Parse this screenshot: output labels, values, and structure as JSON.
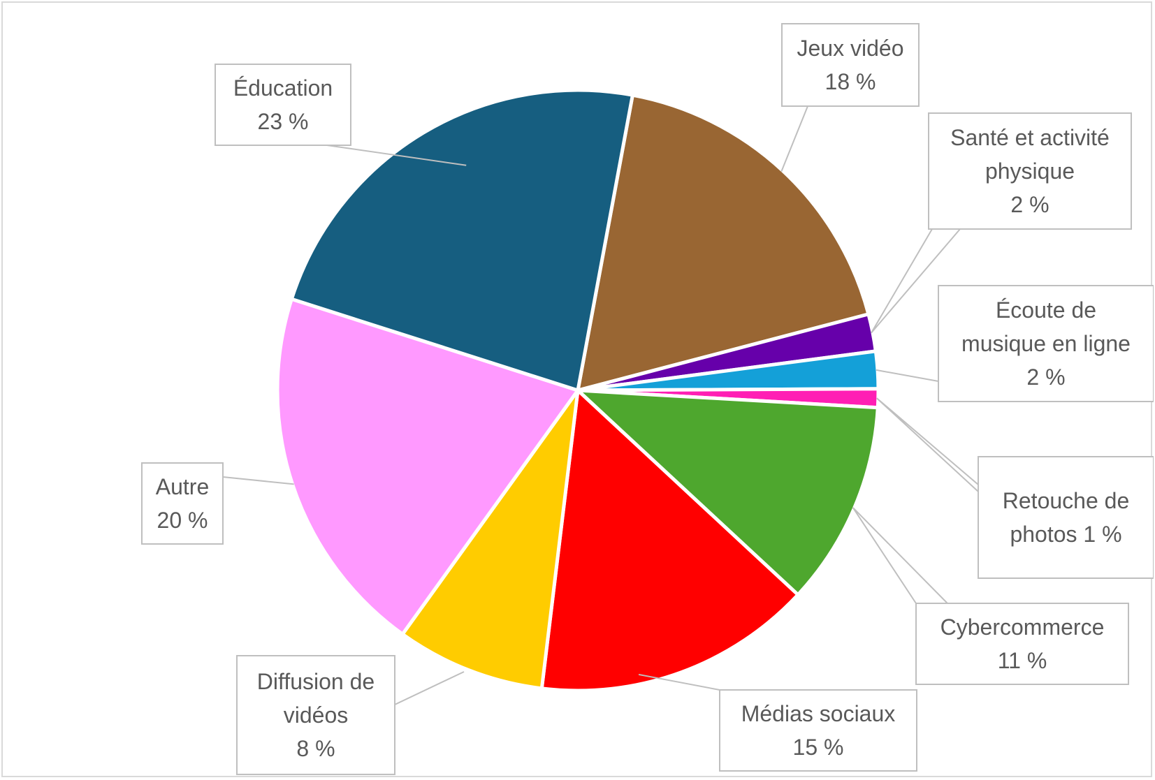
{
  "chart_data": {
    "type": "pie",
    "title": "",
    "slices": [
      {
        "label": "Jeux vidéo",
        "value": 18,
        "value_label": "18 %",
        "color": "#996633"
      },
      {
        "label": "Santé et activité physique",
        "value": 2,
        "value_label": "2 %",
        "color": "#6600aa"
      },
      {
        "label": "Écoute de musique en ligne",
        "value": 2,
        "value_label": "2 %",
        "color": "#14a0d8"
      },
      {
        "label": "Retouche de photos",
        "value": 1,
        "value_label": "1 %",
        "color": "#ff1fb4"
      },
      {
        "label": "Cybercommerce",
        "value": 11,
        "value_label": "11 %",
        "color": "#4ea72e"
      },
      {
        "label": "Médias sociaux",
        "value": 15,
        "value_label": "15 %",
        "color": "#ff0000"
      },
      {
        "label": "Diffusion de vidéos",
        "value": 8,
        "value_label": "8 %",
        "color": "#ffcc00"
      },
      {
        "label": "Autre",
        "value": 20,
        "value_label": "20 %",
        "color": "#ff99ff"
      },
      {
        "label": "Éducation",
        "value": 23,
        "value_label": "23 %",
        "color": "#165e80"
      }
    ],
    "data_labels": [
      {
        "lines": [
          "Jeux vidéo",
          "18 %"
        ]
      },
      {
        "lines": [
          "Santé et activité",
          "physique",
          "2 %"
        ]
      },
      {
        "lines": [
          "Écoute de",
          "musique en ligne",
          "2 %"
        ]
      },
      {
        "lines": [
          "Retouche de",
          "photos 1 %"
        ]
      },
      {
        "lines": [
          "Cybercommerce",
          "11 %"
        ]
      },
      {
        "lines": [
          "Médias sociaux",
          "15 %"
        ]
      },
      {
        "lines": [
          "Diffusion de",
          "vidéos",
          "8 %"
        ]
      },
      {
        "lines": [
          "Autre",
          "20 %"
        ]
      },
      {
        "lines": [
          "Éducation",
          "23 %"
        ]
      }
    ]
  }
}
